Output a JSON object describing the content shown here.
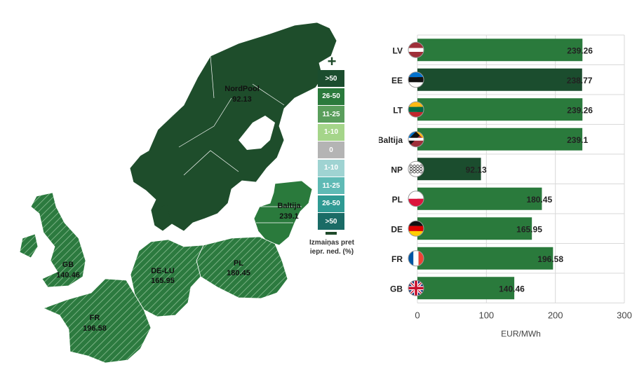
{
  "map": {
    "regions": [
      {
        "id": "nordpool",
        "label": "NordPool",
        "value": "92.13"
      },
      {
        "id": "baltija",
        "label": "Baltija",
        "value": "239.1"
      },
      {
        "id": "pl",
        "label": "PL",
        "value": "180.45"
      },
      {
        "id": "de-lu",
        "label": "DE-LU",
        "value": "165.95"
      },
      {
        "id": "gb",
        "label": "GB",
        "value": "140.46"
      },
      {
        "id": "fr",
        "label": "FR",
        "value": "196.58"
      }
    ],
    "legend": {
      "increase_symbol": "+",
      "items": [
        {
          "label": ">50",
          "color": "#1b4d2e"
        },
        {
          "label": "26-50",
          "color": "#2a7a3c"
        },
        {
          "label": "11-25",
          "color": "#5a9e5c"
        },
        {
          "label": "1-10",
          "color": "#a5d58a"
        },
        {
          "label": "0",
          "color": "#b4b4b4"
        },
        {
          "label": "1-10",
          "color": "#9fd3d2"
        },
        {
          "label": "11-25",
          "color": "#5fbab5"
        },
        {
          "label": "26-50",
          "color": "#2f9a93"
        },
        {
          "label": ">50",
          "color": "#1a6b66"
        }
      ],
      "caption_line1": "Izmaiņas pret",
      "caption_line2": "iepr. ned. (%)"
    }
  },
  "chart_data": {
    "type": "bar",
    "orientation": "horizontal",
    "categories": [
      "LV",
      "EE",
      "LT",
      "Baltija",
      "NP",
      "PL",
      "DE",
      "FR",
      "GB"
    ],
    "values": [
      239.26,
      238.77,
      239.26,
      239.1,
      92.13,
      180.45,
      165.95,
      196.58,
      140.46
    ],
    "data_labels": [
      "239.26",
      "238.77",
      "239.26",
      "239.1",
      "92.13",
      "180.45",
      "165.95",
      "196.58",
      "140.46"
    ],
    "bar_colors": [
      "#2a7a3c",
      "#1b4d2e",
      "#2a7a3c",
      "#2a7a3c",
      "#1b4d2e",
      "#2a7a3c",
      "#2a7a3c",
      "#2a7a3c",
      "#2a7a3c"
    ],
    "xlabel": "EUR/MWh",
    "xlim": [
      0,
      300
    ],
    "xticks": [
      "0",
      "100",
      "200",
      "300"
    ],
    "grid": true,
    "flag_icons": [
      "latvia-flag-icon",
      "estonia-flag-icon",
      "lithuania-flag-icon",
      "baltic-flag-icon",
      "nordpool-icon",
      "poland-flag-icon",
      "germany-flag-icon",
      "france-flag-icon",
      "uk-flag-icon"
    ]
  }
}
